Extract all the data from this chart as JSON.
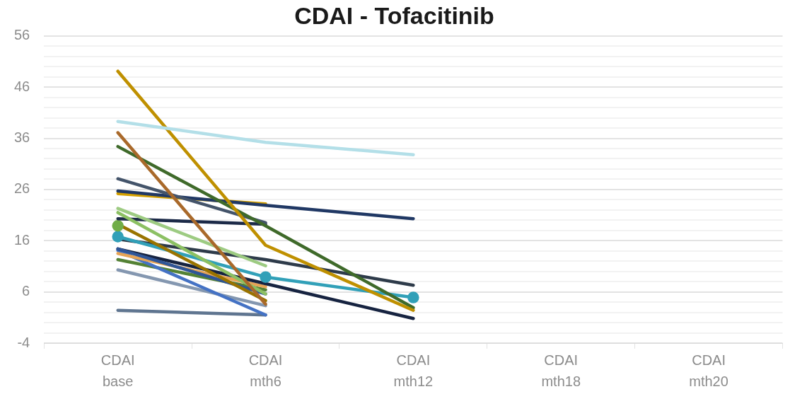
{
  "chart_data": {
    "type": "line",
    "title": "CDAI - Tofacitinib",
    "categories": [
      "CDAI\nbase",
      "CDAI\nmth6",
      "CDAI\nmth12",
      "CDAI\nmth18",
      "CDAI\nmth20"
    ],
    "ylim": [
      -4,
      56
    ],
    "yticks": [
      -4,
      {
        "value": -2,
        "label": null
      },
      {
        "value": 0,
        "label": null
      },
      {
        "value": 2,
        "label": null
      },
      {
        "value": 4,
        "label": null
      },
      6,
      {
        "value": 8,
        "label": null
      },
      {
        "value": 10,
        "label": null
      },
      {
        "value": 12,
        "label": null
      },
      {
        "value": 14,
        "label": null
      },
      16,
      {
        "value": 18,
        "label": null
      },
      {
        "value": 20,
        "label": null
      },
      {
        "value": 22,
        "label": null
      },
      {
        "value": 24,
        "label": null
      },
      26,
      {
        "value": 28,
        "label": null
      },
      {
        "value": 30,
        "label": null
      },
      {
        "value": 32,
        "label": null
      },
      {
        "value": 34,
        "label": null
      },
      36,
      {
        "value": 38,
        "label": null
      },
      {
        "value": 40,
        "label": null
      },
      {
        "value": 42,
        "label": null
      },
      {
        "value": 44,
        "label": null
      },
      46,
      {
        "value": 48,
        "label": null
      },
      {
        "value": 50,
        "label": null
      },
      {
        "value": 52,
        "label": null
      },
      {
        "value": 54,
        "label": null
      },
      56
    ],
    "grid": "y",
    "legend": false,
    "marker": "none",
    "line_style": "solid",
    "series": [
      {
        "color": "#b3dfe8",
        "values": [
          39.3,
          35.2,
          32.8,
          null,
          null
        ]
      },
      {
        "color": "#bf9000",
        "values": [
          49.1,
          15.1,
          2.4,
          null,
          null
        ]
      },
      {
        "color": "#a9692a",
        "values": [
          37.1,
          3.6,
          null,
          null,
          null
        ]
      },
      {
        "color": "#3f6a2a",
        "values": [
          34.4,
          18.9,
          2.9,
          null,
          null
        ]
      },
      {
        "color": "#44546a",
        "values": [
          28.1,
          19.5,
          null,
          null,
          null
        ]
      },
      {
        "color": "#203864",
        "values": [
          25.7,
          22.9,
          20.3,
          null,
          null
        ]
      },
      {
        "color": "#d4a000",
        "values": [
          25.2,
          23.2,
          null,
          null,
          null
        ]
      },
      {
        "color": "#9dcb82",
        "values": [
          22.3,
          11.1,
          null,
          null,
          null
        ]
      },
      {
        "color": "#8cc063",
        "values": [
          21.5,
          5.6,
          null,
          null,
          null
        ]
      },
      {
        "color": "#1c2a48",
        "values": [
          20.3,
          19.2,
          null,
          null,
          null
        ]
      },
      {
        "color": "#70ad47",
        "marker": "circle",
        "values": [
          18.9,
          null,
          null,
          null,
          null
        ]
      },
      {
        "color": "#997300",
        "values": [
          19.2,
          4.3,
          null,
          null,
          null
        ]
      },
      {
        "color": "#31a0b8",
        "marker": "circle",
        "values": [
          16.8,
          8.9,
          4.9,
          null,
          null
        ]
      },
      {
        "color": "#2e3b4a",
        "values": [
          16.3,
          12.3,
          7.3,
          null,
          null
        ]
      },
      {
        "color": "#2f5597",
        "values": [
          14.4,
          5.6,
          null,
          null,
          null
        ]
      },
      {
        "color": "#162340",
        "values": [
          14.4,
          7.6,
          0.8,
          null,
          null
        ]
      },
      {
        "color": "#e6a456",
        "values": [
          13.5,
          7.0,
          null,
          null,
          null
        ]
      },
      {
        "color": "#4472c4",
        "values": [
          14.1,
          1.5,
          null,
          null,
          null
        ]
      },
      {
        "color": "#548235",
        "values": [
          12.3,
          6.4,
          null,
          null,
          null
        ]
      },
      {
        "color": "#8497b0",
        "values": [
          10.3,
          3.3,
          null,
          null,
          null
        ]
      },
      {
        "color": "#5f7590",
        "values": [
          2.4,
          1.5,
          null,
          null,
          null
        ]
      }
    ]
  }
}
